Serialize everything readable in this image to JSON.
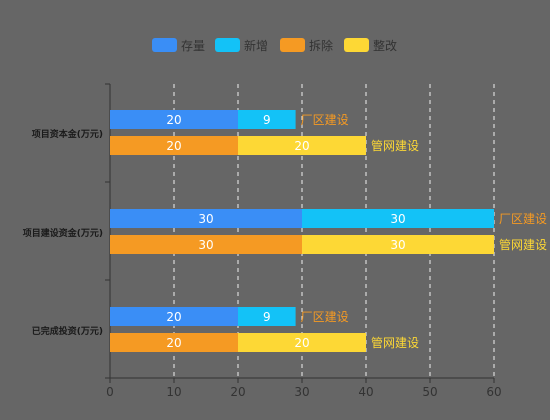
{
  "colors": {
    "background": "#666666",
    "text_dark": "#1a1a1a",
    "label_white": "#ffffff",
    "axis_tick_text": "#333333",
    "grid_line": "#ffffff",
    "axis_line": "#333333"
  },
  "legend": [
    {
      "name": "存量",
      "color": "#3a8ef6"
    },
    {
      "name": "新增",
      "color": "#13c2f7"
    },
    {
      "name": "拆除",
      "color": "#f59a23"
    },
    {
      "name": "整改",
      "color": "#fdd835"
    }
  ],
  "chart_data": {
    "type": "bar",
    "orientation": "horizontal",
    "stacked": true,
    "categories": [
      "项目资本金(万元)",
      "项目建设资金(万元)",
      "已完成投资(万元)"
    ],
    "xlim": [
      0,
      60
    ],
    "x_ticks": [
      0,
      10,
      20,
      30,
      40,
      50,
      60
    ],
    "grid": "vertical dashed",
    "legend_position": "top",
    "stacks": [
      {
        "label": "厂区建设",
        "label_color": "#f59a23",
        "series": [
          {
            "name": "存量",
            "color": "#3a8ef6",
            "values": [
              20,
              30,
              20
            ]
          },
          {
            "name": "新增",
            "color": "#13c2f7",
            "values": [
              9,
              30,
              9
            ]
          }
        ]
      },
      {
        "label": "管网建设",
        "label_color": "#fdd835",
        "series": [
          {
            "name": "拆除",
            "color": "#f59a23",
            "values": [
              20,
              30,
              20
            ]
          },
          {
            "name": "整改",
            "color": "#fdd835",
            "values": [
              20,
              30,
              20
            ]
          }
        ]
      }
    ]
  }
}
